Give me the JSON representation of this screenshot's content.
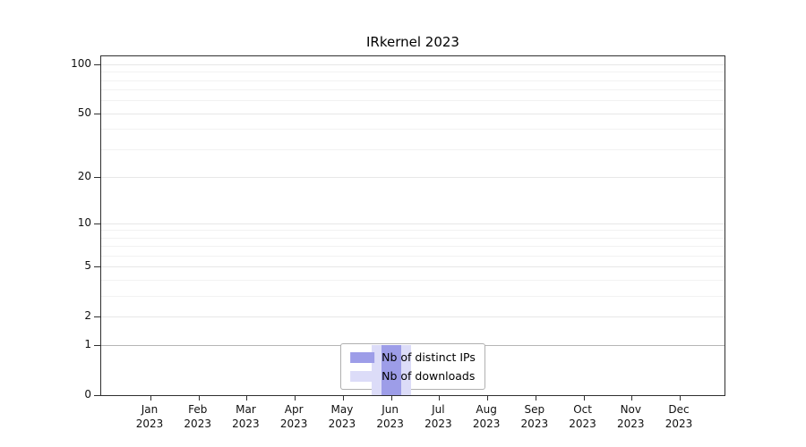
{
  "chart_data": {
    "type": "bar",
    "title": "IRkernel 2023",
    "categories": [
      "Jan",
      "Feb",
      "Mar",
      "Apr",
      "May",
      "Jun",
      "Jul",
      "Aug",
      "Sep",
      "Oct",
      "Nov",
      "Dec"
    ],
    "category_year": "2023",
    "series": [
      {
        "name": "Nb of distinct IPs",
        "color": "#9d9de8",
        "values": [
          0,
          0,
          0,
          0,
          0,
          1,
          0,
          0,
          0,
          0,
          0,
          0
        ]
      },
      {
        "name": "Nb of downloads",
        "color": "#dcdcf8",
        "values": [
          0,
          0,
          0,
          0,
          0,
          1,
          0,
          0,
          0,
          0,
          0,
          0
        ]
      }
    ],
    "y_axis": {
      "scale": "log1p",
      "ylim": [
        0,
        112
      ],
      "max": 112,
      "ticks": [
        100,
        50,
        20,
        10,
        5,
        2,
        1,
        0
      ],
      "minor_ticks": [
        3,
        4,
        6,
        7,
        8,
        9,
        30,
        40,
        60,
        70,
        80,
        90
      ]
    },
    "grid": true,
    "legend": {
      "position": "lower center"
    }
  }
}
